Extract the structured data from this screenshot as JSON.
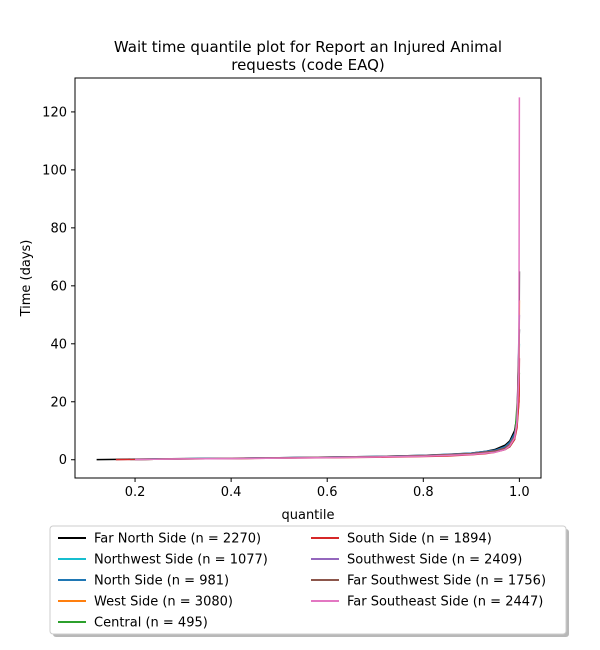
{
  "chart_data": {
    "type": "line",
    "title_lines": [
      "Wait time quantile plot for Report an Injured Animal",
      "requests (code EAQ)"
    ],
    "xlabel": "quantile",
    "ylabel": "Time (days)",
    "xlim": [
      0.075,
      1.045
    ],
    "ylim": [
      -6.3,
      131.7
    ],
    "xticks": [
      0.2,
      0.4,
      0.6,
      0.8,
      1.0
    ],
    "xtick_labels": [
      "0.2",
      "0.4",
      "0.6",
      "0.8",
      "1.0"
    ],
    "yticks": [
      0,
      20,
      40,
      60,
      80,
      100,
      120
    ],
    "ytick_labels": [
      "0",
      "20",
      "40",
      "60",
      "80",
      "100",
      "120"
    ],
    "grid": false,
    "legend_placement": "below-center",
    "series": [
      {
        "name": "Far North Side (n = 2270)",
        "color": "#000000",
        "x": [
          0.12,
          0.2,
          0.3,
          0.4,
          0.5,
          0.6,
          0.7,
          0.8,
          0.85,
          0.9,
          0.93,
          0.95,
          0.97,
          0.98,
          0.99,
          0.995,
          0.999,
          1.0
        ],
        "y": [
          0.05,
          0.2,
          0.4,
          0.5,
          0.7,
          0.9,
          1.1,
          1.5,
          1.8,
          2.3,
          2.9,
          3.6,
          5.0,
          6.5,
          10.0,
          15.0,
          22.0,
          65.0
        ]
      },
      {
        "name": "Northwest Side (n = 1077)",
        "color": "#17becf",
        "x": [
          0.19,
          0.3,
          0.4,
          0.5,
          0.6,
          0.7,
          0.8,
          0.9,
          0.95,
          0.97,
          0.98,
          0.99,
          0.995,
          1.0
        ],
        "y": [
          0.1,
          0.35,
          0.45,
          0.65,
          0.85,
          1.05,
          1.4,
          2.1,
          3.1,
          4.2,
          5.5,
          8.0,
          13.0,
          40.0
        ]
      },
      {
        "name": "North Side (n = 981)",
        "color": "#1f77b4",
        "x": [
          0.2,
          0.3,
          0.4,
          0.5,
          0.6,
          0.7,
          0.8,
          0.9,
          0.95,
          0.97,
          0.98,
          0.99,
          0.995,
          1.0
        ],
        "y": [
          0.1,
          0.35,
          0.45,
          0.7,
          0.9,
          1.1,
          1.5,
          2.3,
          3.3,
          4.5,
          6.0,
          9.0,
          14.0,
          45.0
        ]
      },
      {
        "name": "West Side (n = 3080)",
        "color": "#ff7f0e",
        "x": [
          0.2,
          0.3,
          0.4,
          0.5,
          0.6,
          0.7,
          0.8,
          0.9,
          0.95,
          0.97,
          0.98,
          0.99,
          0.995,
          0.999,
          1.0
        ],
        "y": [
          0.1,
          0.3,
          0.4,
          0.6,
          0.8,
          1.0,
          1.3,
          2.0,
          2.9,
          3.8,
          5.0,
          7.5,
          12.0,
          20.0,
          55.0
        ]
      },
      {
        "name": "Central (n = 495)",
        "color": "#2ca02c",
        "x": [
          0.2,
          0.3,
          0.4,
          0.5,
          0.6,
          0.7,
          0.8,
          0.9,
          0.95,
          0.97,
          0.98,
          0.99,
          1.0
        ],
        "y": [
          0.1,
          0.3,
          0.4,
          0.6,
          0.8,
          1.0,
          1.3,
          1.9,
          2.7,
          3.5,
          4.5,
          7.0,
          30.0
        ]
      },
      {
        "name": "South Side (n = 1894)",
        "color": "#d62728",
        "x": [
          0.16,
          0.2,
          0.3,
          0.4,
          0.5,
          0.6,
          0.7,
          0.8,
          0.85,
          0.9,
          0.93,
          0.95,
          0.97,
          0.98,
          0.99,
          0.995,
          0.999,
          1.0
        ],
        "y": [
          0.05,
          0.1,
          0.3,
          0.4,
          0.55,
          0.7,
          0.85,
          1.1,
          1.3,
          1.7,
          2.1,
          2.6,
          3.5,
          4.5,
          7.0,
          11.0,
          20.0,
          35.0
        ]
      },
      {
        "name": "Southwest Side (n = 2409)",
        "color": "#9467bd",
        "x": [
          0.2,
          0.3,
          0.4,
          0.5,
          0.6,
          0.7,
          0.8,
          0.9,
          0.95,
          0.97,
          0.98,
          0.99,
          0.995,
          1.0
        ],
        "y": [
          0.1,
          0.3,
          0.45,
          0.65,
          0.85,
          1.05,
          1.4,
          2.1,
          3.0,
          4.0,
          5.3,
          8.0,
          13.0,
          50.0
        ]
      },
      {
        "name": "Far Southwest Side (n = 1756)",
        "color": "#8c564b",
        "x": [
          0.2,
          0.3,
          0.4,
          0.5,
          0.6,
          0.7,
          0.8,
          0.9,
          0.95,
          0.97,
          0.98,
          0.99,
          0.995,
          1.0
        ],
        "y": [
          0.1,
          0.3,
          0.45,
          0.65,
          0.85,
          1.05,
          1.4,
          2.1,
          3.0,
          4.0,
          5.3,
          8.0,
          13.0,
          45.0
        ]
      },
      {
        "name": "Far Southeast Side (n = 2447)",
        "color": "#e377c2",
        "x": [
          0.2,
          0.3,
          0.4,
          0.5,
          0.6,
          0.7,
          0.8,
          0.9,
          0.95,
          0.97,
          0.98,
          0.99,
          0.995,
          0.999,
          1.0
        ],
        "y": [
          0.1,
          0.3,
          0.4,
          0.55,
          0.75,
          0.95,
          1.2,
          1.8,
          2.6,
          3.5,
          4.8,
          7.5,
          13.0,
          30.0,
          125.0
        ]
      }
    ]
  }
}
